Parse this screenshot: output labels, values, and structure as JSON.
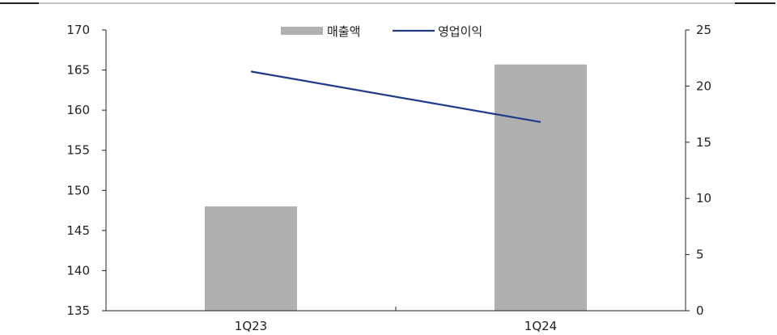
{
  "chart_data": {
    "type": "bar",
    "categories": [
      "1Q23",
      "1Q24"
    ],
    "series": [
      {
        "name": "매출액",
        "type": "bar",
        "axis": "left",
        "values": [
          148.0,
          165.7
        ],
        "color": "#b0b0b0"
      },
      {
        "name": "영업이익",
        "type": "line",
        "axis": "right",
        "values": [
          21.3,
          16.8
        ],
        "color": "#1f3a8a"
      }
    ],
    "y_left": {
      "ticks": [
        "135",
        "140",
        "145",
        "150",
        "155",
        "160",
        "165",
        "170"
      ],
      "min": 135,
      "max": 170
    },
    "y_right": {
      "ticks": [
        "0",
        "5",
        "10",
        "15",
        "20",
        "25"
      ],
      "min": 0,
      "max": 25
    },
    "legend": "top-center",
    "grid": false
  }
}
